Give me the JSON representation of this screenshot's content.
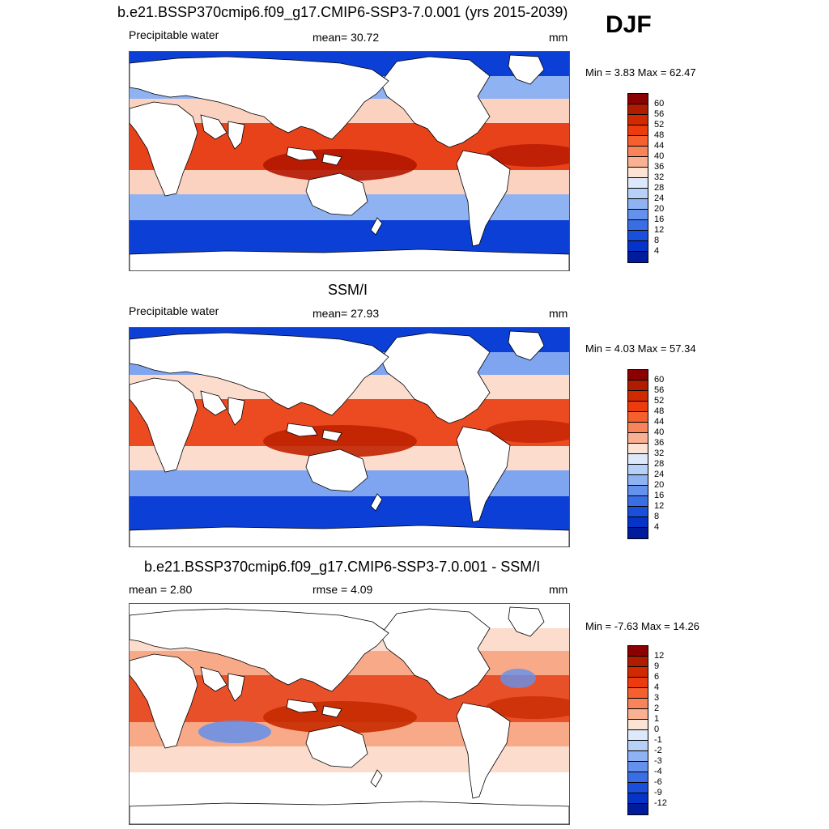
{
  "figure": {
    "season": "DJF"
  },
  "panels": [
    {
      "title": "b.e21.BSSP370cmip6.f09_g17.CMIP6-SSP3-7.0.001 (yrs 2015-2039)",
      "left_label": "Precipitable water",
      "center_label": "mean=  30.72",
      "units": "mm",
      "minmax": "Min =   3.83 Max =  62.47",
      "colorbar": {
        "labels": [
          "60",
          "56",
          "52",
          "48",
          "44",
          "40",
          "36",
          "32",
          "28",
          "24",
          "20",
          "16",
          "12",
          "8",
          "4"
        ],
        "colors": [
          "#8b0000",
          "#b01c00",
          "#d22a00",
          "#ec3b0c",
          "#f5602e",
          "#f8845c",
          "#fab193",
          "#fde3d4",
          "#dde9fb",
          "#b7d0f8",
          "#8fb2f2",
          "#6391ec",
          "#3a6ee4",
          "#1a4fdc",
          "#0634c8",
          "#001c9c"
        ]
      },
      "map_fields": {
        "tropics_color": "#e8421a",
        "warm_pool_color": "#b21600",
        "subtropics_color": "#fbd2bf",
        "midlat_color": "#8fb2f2",
        "polar_color": "#0b3fd6"
      }
    },
    {
      "title": "SSM/I",
      "left_label": "Precipitable water",
      "center_label": "mean=  27.93",
      "units": "mm",
      "minmax": "Min =   4.03 Max =  57.34",
      "colorbar": {
        "labels": [
          "60",
          "56",
          "52",
          "48",
          "44",
          "40",
          "36",
          "32",
          "28",
          "24",
          "20",
          "16",
          "12",
          "8",
          "4"
        ],
        "colors": [
          "#8b0000",
          "#b01c00",
          "#d22a00",
          "#ec3b0c",
          "#f5602e",
          "#f8845c",
          "#fab193",
          "#fde3d4",
          "#dde9fb",
          "#b7d0f8",
          "#8fb2f2",
          "#6391ec",
          "#3a6ee4",
          "#1a4fdc",
          "#0634c8",
          "#001c9c"
        ]
      },
      "map_fields": {
        "tropics_color": "#ec4a20",
        "warm_pool_color": "#c02200",
        "subtropics_color": "#fcdccd",
        "midlat_color": "#7fa4f0",
        "polar_color": "#0b3fd6"
      }
    },
    {
      "title": "b.e21.BSSP370cmip6.f09_g17.CMIP6-SSP3-7.0.001 - SSM/I",
      "left_label": "mean =   2.80",
      "center_label": "rmse =   4.09",
      "units": "mm",
      "minmax": "Min =  -7.63 Max =  14.26",
      "colorbar": {
        "labels": [
          "12",
          "9",
          "6",
          "4",
          "3",
          "2",
          "1",
          "0",
          "-1",
          "-2",
          "-3",
          "-4",
          "-6",
          "-9",
          "-12"
        ],
        "colors": [
          "#8b0000",
          "#b01c00",
          "#d22a00",
          "#ec3b0c",
          "#f5602e",
          "#f8845c",
          "#fab193",
          "#fde3d4",
          "#dde9fb",
          "#b7d0f8",
          "#8fb2f2",
          "#6391ec",
          "#3a6ee4",
          "#1a4fdc",
          "#0634c8",
          "#001c9c"
        ]
      },
      "map_fields": {
        "tropics_color": "#e8502a",
        "warm_pool_color": "#c62a00",
        "subtropics_color": "#f8a988",
        "midlat_color": "#fcdccd",
        "polar_color": "#ffffff",
        "negative_color": "#6391ec"
      }
    }
  ]
}
